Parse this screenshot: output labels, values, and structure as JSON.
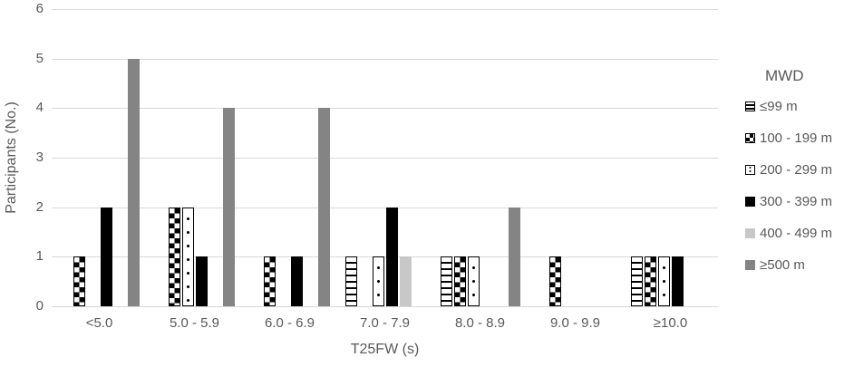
{
  "chart_data": {
    "type": "bar",
    "title": "",
    "xlabel": "T25FW (s)",
    "ylabel": "Participants (No.)",
    "ylim": [
      0,
      6
    ],
    "yticks": [
      0,
      1,
      2,
      3,
      4,
      5,
      6
    ],
    "grid": true,
    "legend_position": "right",
    "legend_title": "MWD",
    "categories": [
      "<5.0",
      "5.0 - 5.9",
      "6.0 - 6.9",
      "7.0 - 7.9",
      "8.0 - 8.9",
      "9.0 - 9.9",
      "≥10.0"
    ],
    "series": [
      {
        "name": "≤99 m",
        "pattern": "horizontal-stripes",
        "values": [
          0,
          0,
          0,
          1,
          1,
          0,
          1
        ]
      },
      {
        "name": "100 - 199 m",
        "pattern": "checker",
        "values": [
          1,
          2,
          1,
          0,
          1,
          1,
          1
        ]
      },
      {
        "name": "200 - 299 m",
        "pattern": "dots",
        "values": [
          0,
          2,
          0,
          1,
          1,
          0,
          1
        ]
      },
      {
        "name": "300 - 399 m",
        "pattern": "solid-black",
        "values": [
          2,
          1,
          1,
          2,
          0,
          0,
          1
        ]
      },
      {
        "name": "400 - 499 m",
        "pattern": "solid-lightgray",
        "values": [
          0,
          0,
          0,
          1,
          0,
          0,
          0
        ]
      },
      {
        "name": "≥500 m",
        "pattern": "solid-darkgray",
        "values": [
          5,
          4,
          4,
          0,
          2,
          0,
          0
        ]
      }
    ],
    "colors": {
      "black": "#000000",
      "light_gray": "#c8c8c8",
      "dark_gray": "#848484",
      "gridline": "#d9d9d9",
      "text": "#595959"
    }
  }
}
